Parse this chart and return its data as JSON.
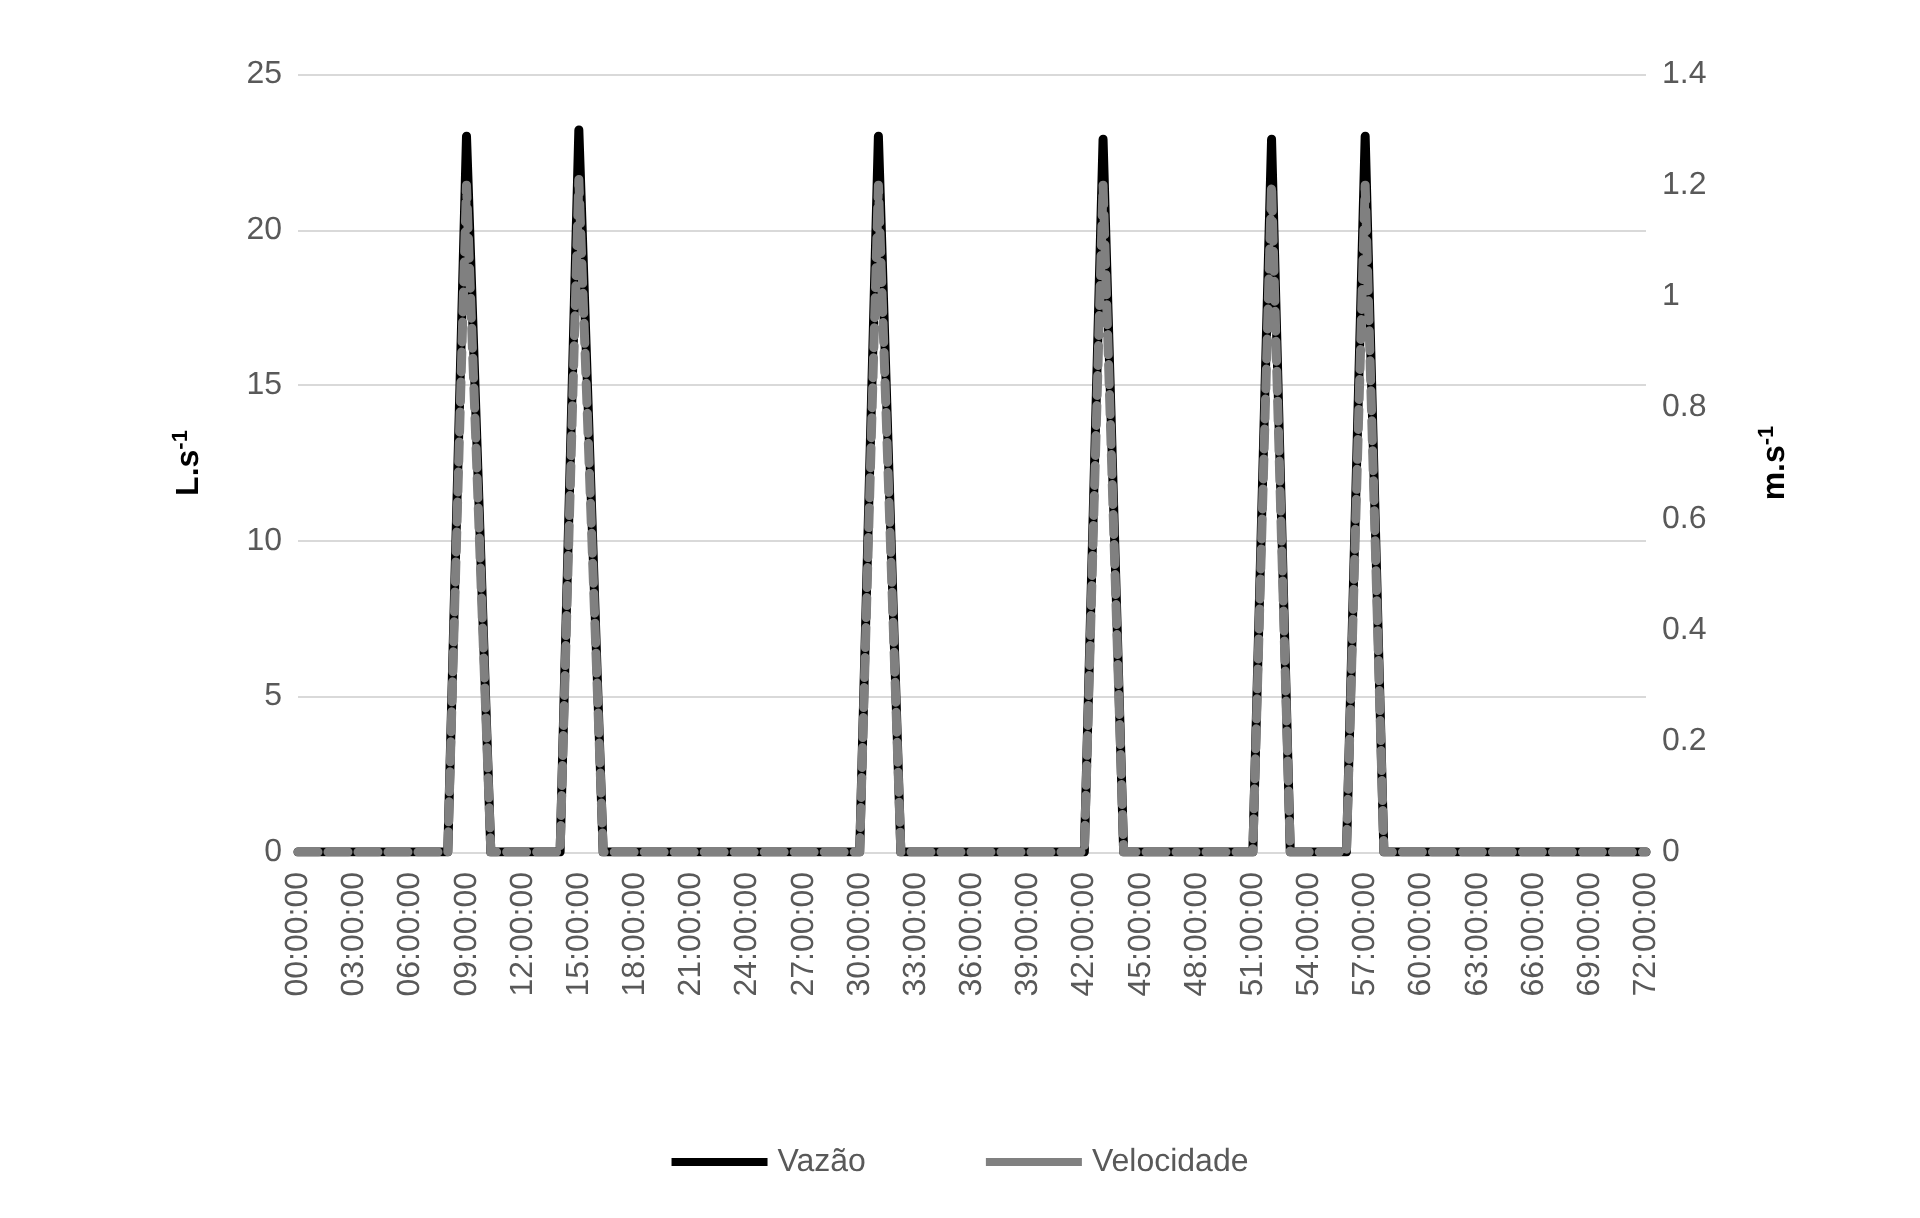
{
  "chart_data": {
    "type": "line",
    "ylabel": "L.s$^{-1}$",
    "y2label": "m.s$^{-1}$",
    "x": [
      0,
      8,
      9,
      10.3,
      14,
      15,
      16.3,
      30,
      31,
      32.2,
      42,
      43,
      44.1,
      51,
      52,
      53,
      56,
      57,
      58,
      72
    ],
    "series": [
      {
        "name": "Vazão",
        "color": "#000000",
        "line_style": "solid",
        "values": [
          0,
          0,
          23,
          0,
          0,
          23.2,
          0,
          0,
          23,
          0,
          0,
          22.9,
          0,
          0,
          22.9,
          0,
          0,
          23,
          0,
          0
        ]
      },
      {
        "name": "Velocidade",
        "color": "#808080",
        "line_style": "dashed",
        "axis": "y2",
        "values": [
          0,
          0,
          1.2,
          0,
          0,
          1.21,
          0,
          0,
          1.2,
          0,
          0,
          1.2,
          0,
          0,
          1.2,
          0,
          0,
          1.2,
          0,
          0
        ]
      }
    ],
    "xlim": [
      0,
      72
    ],
    "xticks": [
      {
        "value": 0,
        "label": "00:00:00"
      },
      {
        "value": 3,
        "label": "03:00:00"
      },
      {
        "value": 6,
        "label": "06:00:00"
      },
      {
        "value": 9,
        "label": "09:00:00"
      },
      {
        "value": 12,
        "label": "12:00:00"
      },
      {
        "value": 15,
        "label": "15:00:00"
      },
      {
        "value": 18,
        "label": "18:00:00"
      },
      {
        "value": 21,
        "label": "21:00:00"
      },
      {
        "value": 24,
        "label": "24:00:00"
      },
      {
        "value": 27,
        "label": "27:00:00"
      },
      {
        "value": 30,
        "label": "30:00:00"
      },
      {
        "value": 33,
        "label": "33:00:00"
      },
      {
        "value": 36,
        "label": "36:00:00"
      },
      {
        "value": 39,
        "label": "39:00:00"
      },
      {
        "value": 42,
        "label": "42:00:00"
      },
      {
        "value": 45,
        "label": "45:00:00"
      },
      {
        "value": 48,
        "label": "48:00:00"
      },
      {
        "value": 51,
        "label": "51:00:00"
      },
      {
        "value": 54,
        "label": "54:00:00"
      },
      {
        "value": 57,
        "label": "57:00:00"
      },
      {
        "value": 60,
        "label": "60:00:00"
      },
      {
        "value": 63,
        "label": "63:00:00"
      },
      {
        "value": 66,
        "label": "66:00:00"
      },
      {
        "value": 69,
        "label": "69:00:00"
      },
      {
        "value": 72,
        "label": "72:00:00"
      }
    ],
    "ylim": [
      0,
      25
    ],
    "yticks": [
      0,
      5,
      10,
      15,
      20,
      25
    ],
    "y2lim": [
      0,
      1.4
    ],
    "y2ticks": [
      0,
      0.2,
      0.4,
      0.6,
      0.8,
      1,
      1.2,
      1.4
    ],
    "grid": "y",
    "legend": "bottom",
    "marker": "none"
  }
}
